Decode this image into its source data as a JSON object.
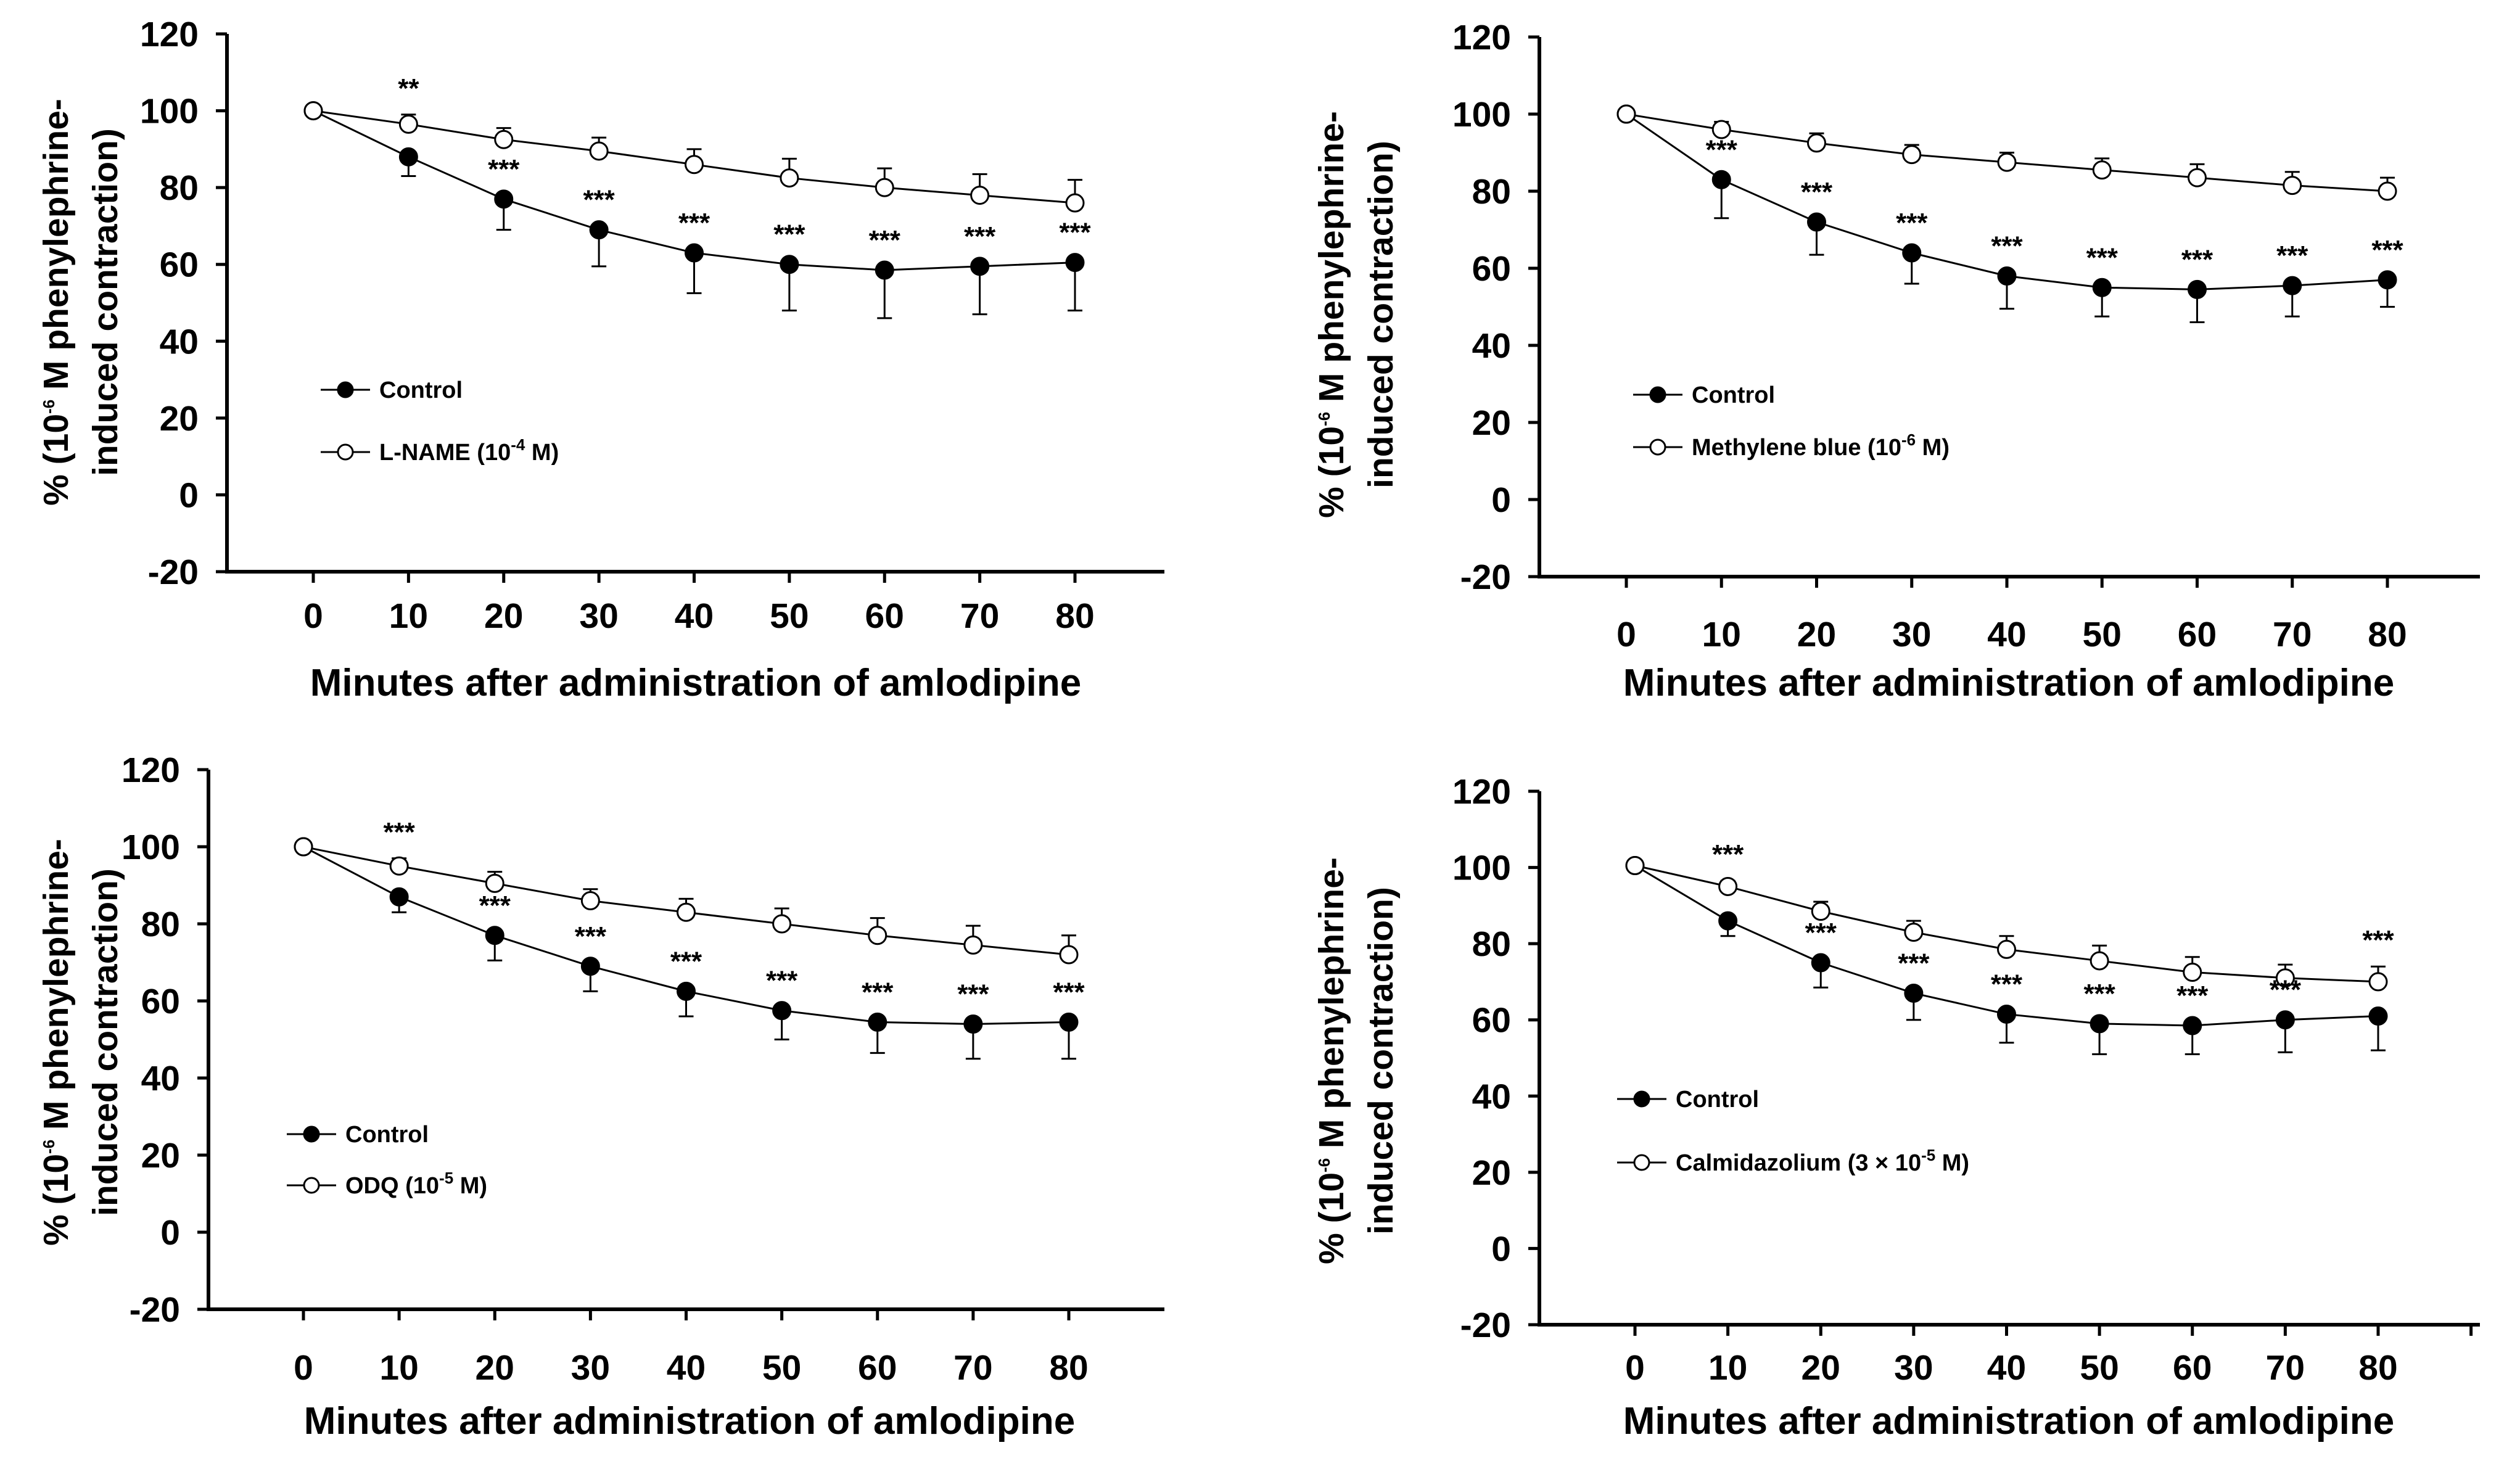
{
  "chart_data": [
    {
      "type": "line",
      "title": "",
      "xlabel": "Minutes after administration of amlodipine",
      "ylabel": {
        "line1_a": "% (10",
        "line1_sup": "-6",
        "line1_b": " M phenylephrine-",
        "line2": "induced contraction)"
      },
      "xlim": [
        0,
        80
      ],
      "ylim": [
        -20,
        120
      ],
      "x": [
        0,
        10,
        20,
        30,
        40,
        50,
        60,
        70,
        80
      ],
      "yticks": [
        -20,
        0,
        20,
        40,
        60,
        80,
        100,
        120
      ],
      "series": [
        {
          "name": "Control",
          "marker": "filled",
          "values": [
            100,
            88,
            77,
            69,
            63,
            60,
            58.5,
            59.5,
            60.5
          ],
          "err": [
            0,
            5,
            8,
            9.5,
            10.5,
            12,
            12.5,
            12.5,
            12.5
          ]
        },
        {
          "name": {
            "a": "L-NAME  (10",
            "sup": "-4",
            "b": " M)"
          },
          "marker": "open",
          "values": [
            100,
            96.5,
            92.5,
            89.5,
            86,
            82.5,
            80,
            78,
            76
          ],
          "err": [
            0,
            2.5,
            3,
            3.5,
            4,
            5,
            5,
            5.5,
            6
          ]
        }
      ],
      "significance": [
        {
          "x": 10,
          "series": 1,
          "label": "**"
        },
        {
          "x": 20,
          "series": 0,
          "label": "***"
        },
        {
          "x": 30,
          "series": 0,
          "label": "***"
        },
        {
          "x": 40,
          "series": 0,
          "label": "***"
        },
        {
          "x": 50,
          "series": 0,
          "label": "***"
        },
        {
          "x": 60,
          "series": 0,
          "label": "***"
        },
        {
          "x": 70,
          "series": 0,
          "label": "***"
        },
        {
          "x": 80,
          "series": 0,
          "label": "***"
        }
      ]
    },
    {
      "type": "line",
      "title": "",
      "xlabel": "Minutes after administration of amlodipine",
      "ylabel": {
        "line1_a": "% (10",
        "line1_sup": "-6",
        "line1_b": " M phenylephrine-",
        "line2": "induced contraction)"
      },
      "xlim": [
        0,
        80
      ],
      "ylim": [
        -20,
        120
      ],
      "x": [
        0,
        10,
        20,
        30,
        40,
        50,
        60,
        70,
        80
      ],
      "yticks": [
        -20,
        0,
        20,
        40,
        60,
        80,
        100,
        120
      ],
      "series": [
        {
          "name": "Control",
          "marker": "filled",
          "values": [
            100,
            83,
            72,
            64,
            58,
            55,
            54.5,
            55.5,
            57
          ],
          "err": [
            0,
            10,
            8.5,
            8,
            8.5,
            7.5,
            8.5,
            8,
            7
          ]
        },
        {
          "name": {
            "a": "Methylene blue (10",
            "sup": "-6",
            "b": " M)"
          },
          "marker": "open",
          "values": [
            100,
            96,
            92.5,
            89.5,
            87.5,
            85.5,
            83.5,
            81.5,
            80
          ],
          "err": [
            0,
            2,
            2.5,
            2.5,
            2.5,
            3,
            3.5,
            3.5,
            3.5
          ]
        }
      ],
      "significance": [
        {
          "x": 10,
          "series": 0,
          "label": "***"
        },
        {
          "x": 20,
          "series": 0,
          "label": "***"
        },
        {
          "x": 30,
          "series": 0,
          "label": "***"
        },
        {
          "x": 40,
          "series": 0,
          "label": "***"
        },
        {
          "x": 50,
          "series": 0,
          "label": "***"
        },
        {
          "x": 60,
          "series": 0,
          "label": "***"
        },
        {
          "x": 70,
          "series": 0,
          "label": "***"
        },
        {
          "x": 80,
          "series": 0,
          "label": "***"
        }
      ]
    },
    {
      "type": "line",
      "title": "",
      "xlabel": "Minutes after administration of amlodipine",
      "ylabel": {
        "line1_a": "% (10",
        "line1_sup": "-6",
        "line1_b": " M phenylephrine-",
        "line2": "induced contraction)"
      },
      "xlim": [
        0,
        80
      ],
      "ylim": [
        -20,
        120
      ],
      "x": [
        0,
        10,
        20,
        30,
        40,
        50,
        60,
        70,
        80
      ],
      "yticks": [
        -20,
        0,
        20,
        40,
        60,
        80,
        100,
        120
      ],
      "series": [
        {
          "name": "Control",
          "marker": "filled",
          "values": [
            100,
            87,
            77,
            69,
            62.5,
            57.5,
            54.5,
            54,
            54.5
          ],
          "err": [
            0,
            4,
            6.5,
            6.5,
            6.5,
            7.5,
            8,
            9,
            9.5
          ]
        },
        {
          "name": {
            "a": "ODQ  (10",
            "sup": "-5",
            "b": " M)"
          },
          "marker": "open",
          "values": [
            100,
            95,
            90.5,
            86,
            83,
            80,
            77,
            74.5,
            72
          ],
          "err": [
            0,
            2,
            3,
            3,
            3.5,
            4,
            4.5,
            5,
            5
          ]
        }
      ],
      "significance": [
        {
          "x": 10,
          "series": 1,
          "label": "***"
        },
        {
          "x": 20,
          "series": 0,
          "label": "***"
        },
        {
          "x": 30,
          "series": 0,
          "label": "***"
        },
        {
          "x": 40,
          "series": 0,
          "label": "***"
        },
        {
          "x": 50,
          "series": 0,
          "label": "***"
        },
        {
          "x": 60,
          "series": 0,
          "label": "***"
        },
        {
          "x": 70,
          "series": 0,
          "label": "***"
        },
        {
          "x": 80,
          "series": 0,
          "label": "***"
        }
      ]
    },
    {
      "type": "line",
      "title": "",
      "xlabel": "Minutes after administration of amlodipine",
      "ylabel": {
        "line1_a": "% (10",
        "line1_sup": "-6",
        "line1_b": " M phenylephrine-",
        "line2": "induced contraction)"
      },
      "xlim": [
        0,
        80
      ],
      "ylim": [
        -20,
        120
      ],
      "x": [
        0,
        10,
        20,
        30,
        40,
        50,
        60,
        70,
        80
      ],
      "yticks": [
        -20,
        0,
        20,
        40,
        60,
        80,
        100,
        120
      ],
      "series": [
        {
          "name": "Control",
          "marker": "filled",
          "values": [
            100.5,
            86,
            75,
            67,
            61.5,
            59,
            58.5,
            60,
            61
          ],
          "err": [
            0,
            4,
            6.5,
            7,
            7.5,
            8,
            7.5,
            8.5,
            9
          ]
        },
        {
          "name": {
            "a": "Calmidazolium (3 × 10",
            "sup": "-5",
            "b": " M)"
          },
          "marker": "open",
          "values": [
            100.5,
            95,
            88.5,
            83,
            78.5,
            75.5,
            72.5,
            71,
            70
          ],
          "err": [
            0,
            1.5,
            2.5,
            3,
            3.5,
            4,
            4,
            3.5,
            4
          ]
        }
      ],
      "significance": [
        {
          "x": 10,
          "series": 1,
          "label": "***"
        },
        {
          "x": 20,
          "series": 0,
          "label": "***"
        },
        {
          "x": 30,
          "series": 0,
          "label": "***"
        },
        {
          "x": 40,
          "series": 0,
          "label": "***"
        },
        {
          "x": 50,
          "series": 0,
          "label": "***"
        },
        {
          "x": 60,
          "series": 0,
          "label": "***"
        },
        {
          "x": 70,
          "series": 0,
          "label": "***"
        },
        {
          "x": 80,
          "series": 1,
          "label": "***"
        }
      ]
    }
  ]
}
